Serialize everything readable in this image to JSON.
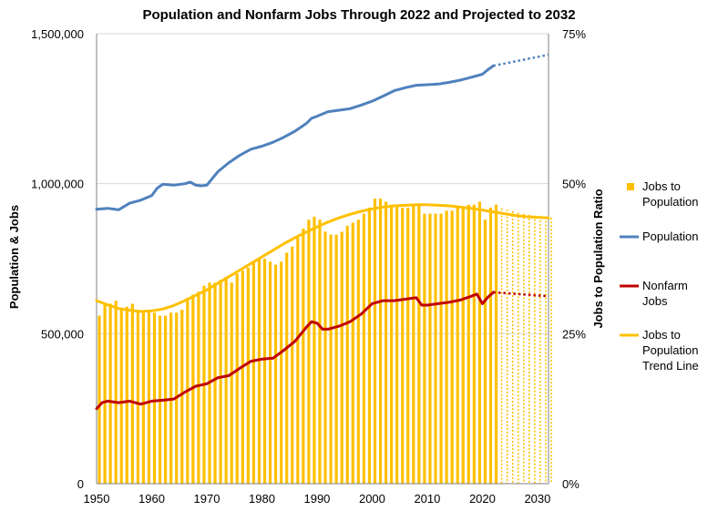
{
  "chart_data": {
    "type": "bar+line",
    "title": "Population and Nonfarm Jobs Through 2022 and Projected to 2032",
    "ylabel_left": "Population & Jobs",
    "ylabel_right": "Jobs to Population Ratio",
    "xlim": [
      1950,
      2032
    ],
    "ylim_left": [
      0,
      1500000
    ],
    "ylim_right": [
      0,
      75
    ],
    "x_ticks": [
      "1950",
      "1960",
      "1970",
      "1980",
      "1990",
      "2000",
      "2010",
      "2020",
      "2030"
    ],
    "y_left_ticks": [
      "0",
      "500,000",
      "1,000,000",
      "1,500,000"
    ],
    "y_right_ticks": [
      "0%",
      "25%",
      "50%",
      "75%"
    ],
    "grid": "horizontal",
    "legend_position": "right",
    "legend": [
      "Jobs to Population",
      "Population",
      "Nonfarm Jobs",
      "Jobs to Population Trend Line"
    ],
    "colors": {
      "ratio": "#FFC000",
      "population": "#4F81BD",
      "jobs": "#C00000",
      "trend": "#FFC000",
      "grid": "#D9D9D9",
      "axis": "#808080"
    },
    "projection_start": 2022,
    "jobs_to_population_pct": {
      "years": [
        1950,
        1951,
        1952,
        1953,
        1954,
        1955,
        1956,
        1957,
        1958,
        1959,
        1960,
        1961,
        1962,
        1963,
        1964,
        1965,
        1966,
        1967,
        1968,
        1969,
        1970,
        1971,
        1972,
        1973,
        1974,
        1975,
        1976,
        1977,
        1978,
        1979,
        1980,
        1981,
        1982,
        1983,
        1984,
        1985,
        1986,
        1987,
        1988,
        1989,
        1990,
        1991,
        1992,
        1993,
        1994,
        1995,
        1996,
        1997,
        1998,
        1999,
        2000,
        2001,
        2002,
        2003,
        2004,
        2005,
        2006,
        2007,
        2008,
        2009,
        2010,
        2011,
        2012,
        2013,
        2014,
        2015,
        2016,
        2017,
        2018,
        2019,
        2020,
        2021,
        2022,
        2023,
        2024,
        2025,
        2026,
        2027,
        2028,
        2029,
        2030,
        2031,
        2032
      ],
      "values": [
        28,
        30,
        30,
        30.5,
        29,
        29.5,
        30,
        29,
        28.5,
        29,
        28.5,
        28,
        28,
        28.5,
        28.5,
        29,
        31,
        31.5,
        32,
        33,
        33.5,
        33.5,
        34,
        34.5,
        33.5,
        35,
        35.5,
        36,
        37,
        37.5,
        37.5,
        37,
        36.5,
        37,
        38.5,
        39.5,
        41,
        42.5,
        44,
        44.5,
        44,
        42,
        41.5,
        41.5,
        42,
        43,
        43.5,
        44,
        45,
        46,
        47.5,
        47.5,
        47,
        46.5,
        46.5,
        46,
        46,
        46.5,
        46.5,
        45,
        45,
        45,
        45,
        45.5,
        45.5,
        46,
        46,
        46.5,
        46.5,
        47,
        44,
        46,
        46.5,
        45.9,
        45.7,
        45.4,
        45.2,
        45,
        44.8,
        44.7,
        44.5,
        44.4,
        44.3
      ]
    },
    "population": {
      "years": [
        1950,
        1952,
        1954,
        1956,
        1958,
        1960,
        1961,
        1962,
        1964,
        1966,
        1967,
        1968,
        1969,
        1970,
        1972,
        1974,
        1976,
        1978,
        1980,
        1982,
        1984,
        1986,
        1988,
        1989,
        1990,
        1992,
        1994,
        1996,
        1998,
        2000,
        2002,
        2004,
        2006,
        2008,
        2010,
        2012,
        2014,
        2016,
        2018,
        2020,
        2021,
        2022,
        2032
      ],
      "values": [
        915000,
        918000,
        913000,
        935000,
        945000,
        960000,
        985000,
        998000,
        995000,
        1000000,
        1005000,
        995000,
        993000,
        995000,
        1040000,
        1070000,
        1095000,
        1115000,
        1125000,
        1138000,
        1155000,
        1175000,
        1200000,
        1218000,
        1225000,
        1240000,
        1245000,
        1250000,
        1262000,
        1275000,
        1292000,
        1310000,
        1320000,
        1328000,
        1330000,
        1332000,
        1338000,
        1345000,
        1355000,
        1365000,
        1380000,
        1393000,
        1430000
      ],
      "projected_from": 2022
    },
    "nonfarm_jobs": {
      "years": [
        1950,
        1951,
        1952,
        1954,
        1956,
        1958,
        1960,
        1962,
        1964,
        1966,
        1968,
        1970,
        1972,
        1974,
        1976,
        1978,
        1980,
        1982,
        1984,
        1986,
        1988,
        1989,
        1990,
        1991,
        1992,
        1994,
        1996,
        1998,
        2000,
        2002,
        2004,
        2006,
        2008,
        2009,
        2010,
        2012,
        2014,
        2016,
        2018,
        2019,
        2020,
        2021,
        2022,
        2032
      ],
      "values": [
        250000,
        270000,
        275000,
        270000,
        275000,
        265000,
        275000,
        278000,
        282000,
        305000,
        325000,
        333000,
        353000,
        360000,
        385000,
        408000,
        415000,
        418000,
        445000,
        475000,
        520000,
        540000,
        535000,
        515000,
        515000,
        525000,
        540000,
        565000,
        600000,
        610000,
        610000,
        615000,
        620000,
        595000,
        595000,
        600000,
        605000,
        612000,
        625000,
        632000,
        600000,
        622000,
        638000,
        625000
      ],
      "projected_from": 2022
    },
    "trend_line_pct": {
      "years": [
        1950,
        1952,
        1954,
        1956,
        1958,
        1960,
        1962,
        1964,
        1966,
        1968,
        1970,
        1972,
        1974,
        1976,
        1978,
        1980,
        1982,
        1984,
        1986,
        1988,
        1990,
        1992,
        1994,
        1996,
        1998,
        2000,
        2002,
        2004,
        2006,
        2008,
        2010,
        2012,
        2014,
        2016,
        2018,
        2020,
        2022,
        2024,
        2026,
        2028,
        2030,
        2032
      ],
      "values": [
        30.5,
        29.8,
        29.2,
        28.9,
        28.7,
        28.8,
        29.1,
        29.7,
        30.5,
        31.4,
        32.3,
        33.4,
        34.5,
        35.6,
        36.7,
        37.8,
        38.9,
        40.0,
        41.0,
        41.9,
        42.8,
        43.6,
        44.3,
        44.9,
        45.4,
        45.8,
        46.1,
        46.3,
        46.4,
        46.5,
        46.5,
        46.4,
        46.3,
        46.1,
        45.9,
        45.6,
        45.3,
        45.0,
        44.7,
        44.5,
        44.4,
        44.3
      ]
    }
  }
}
